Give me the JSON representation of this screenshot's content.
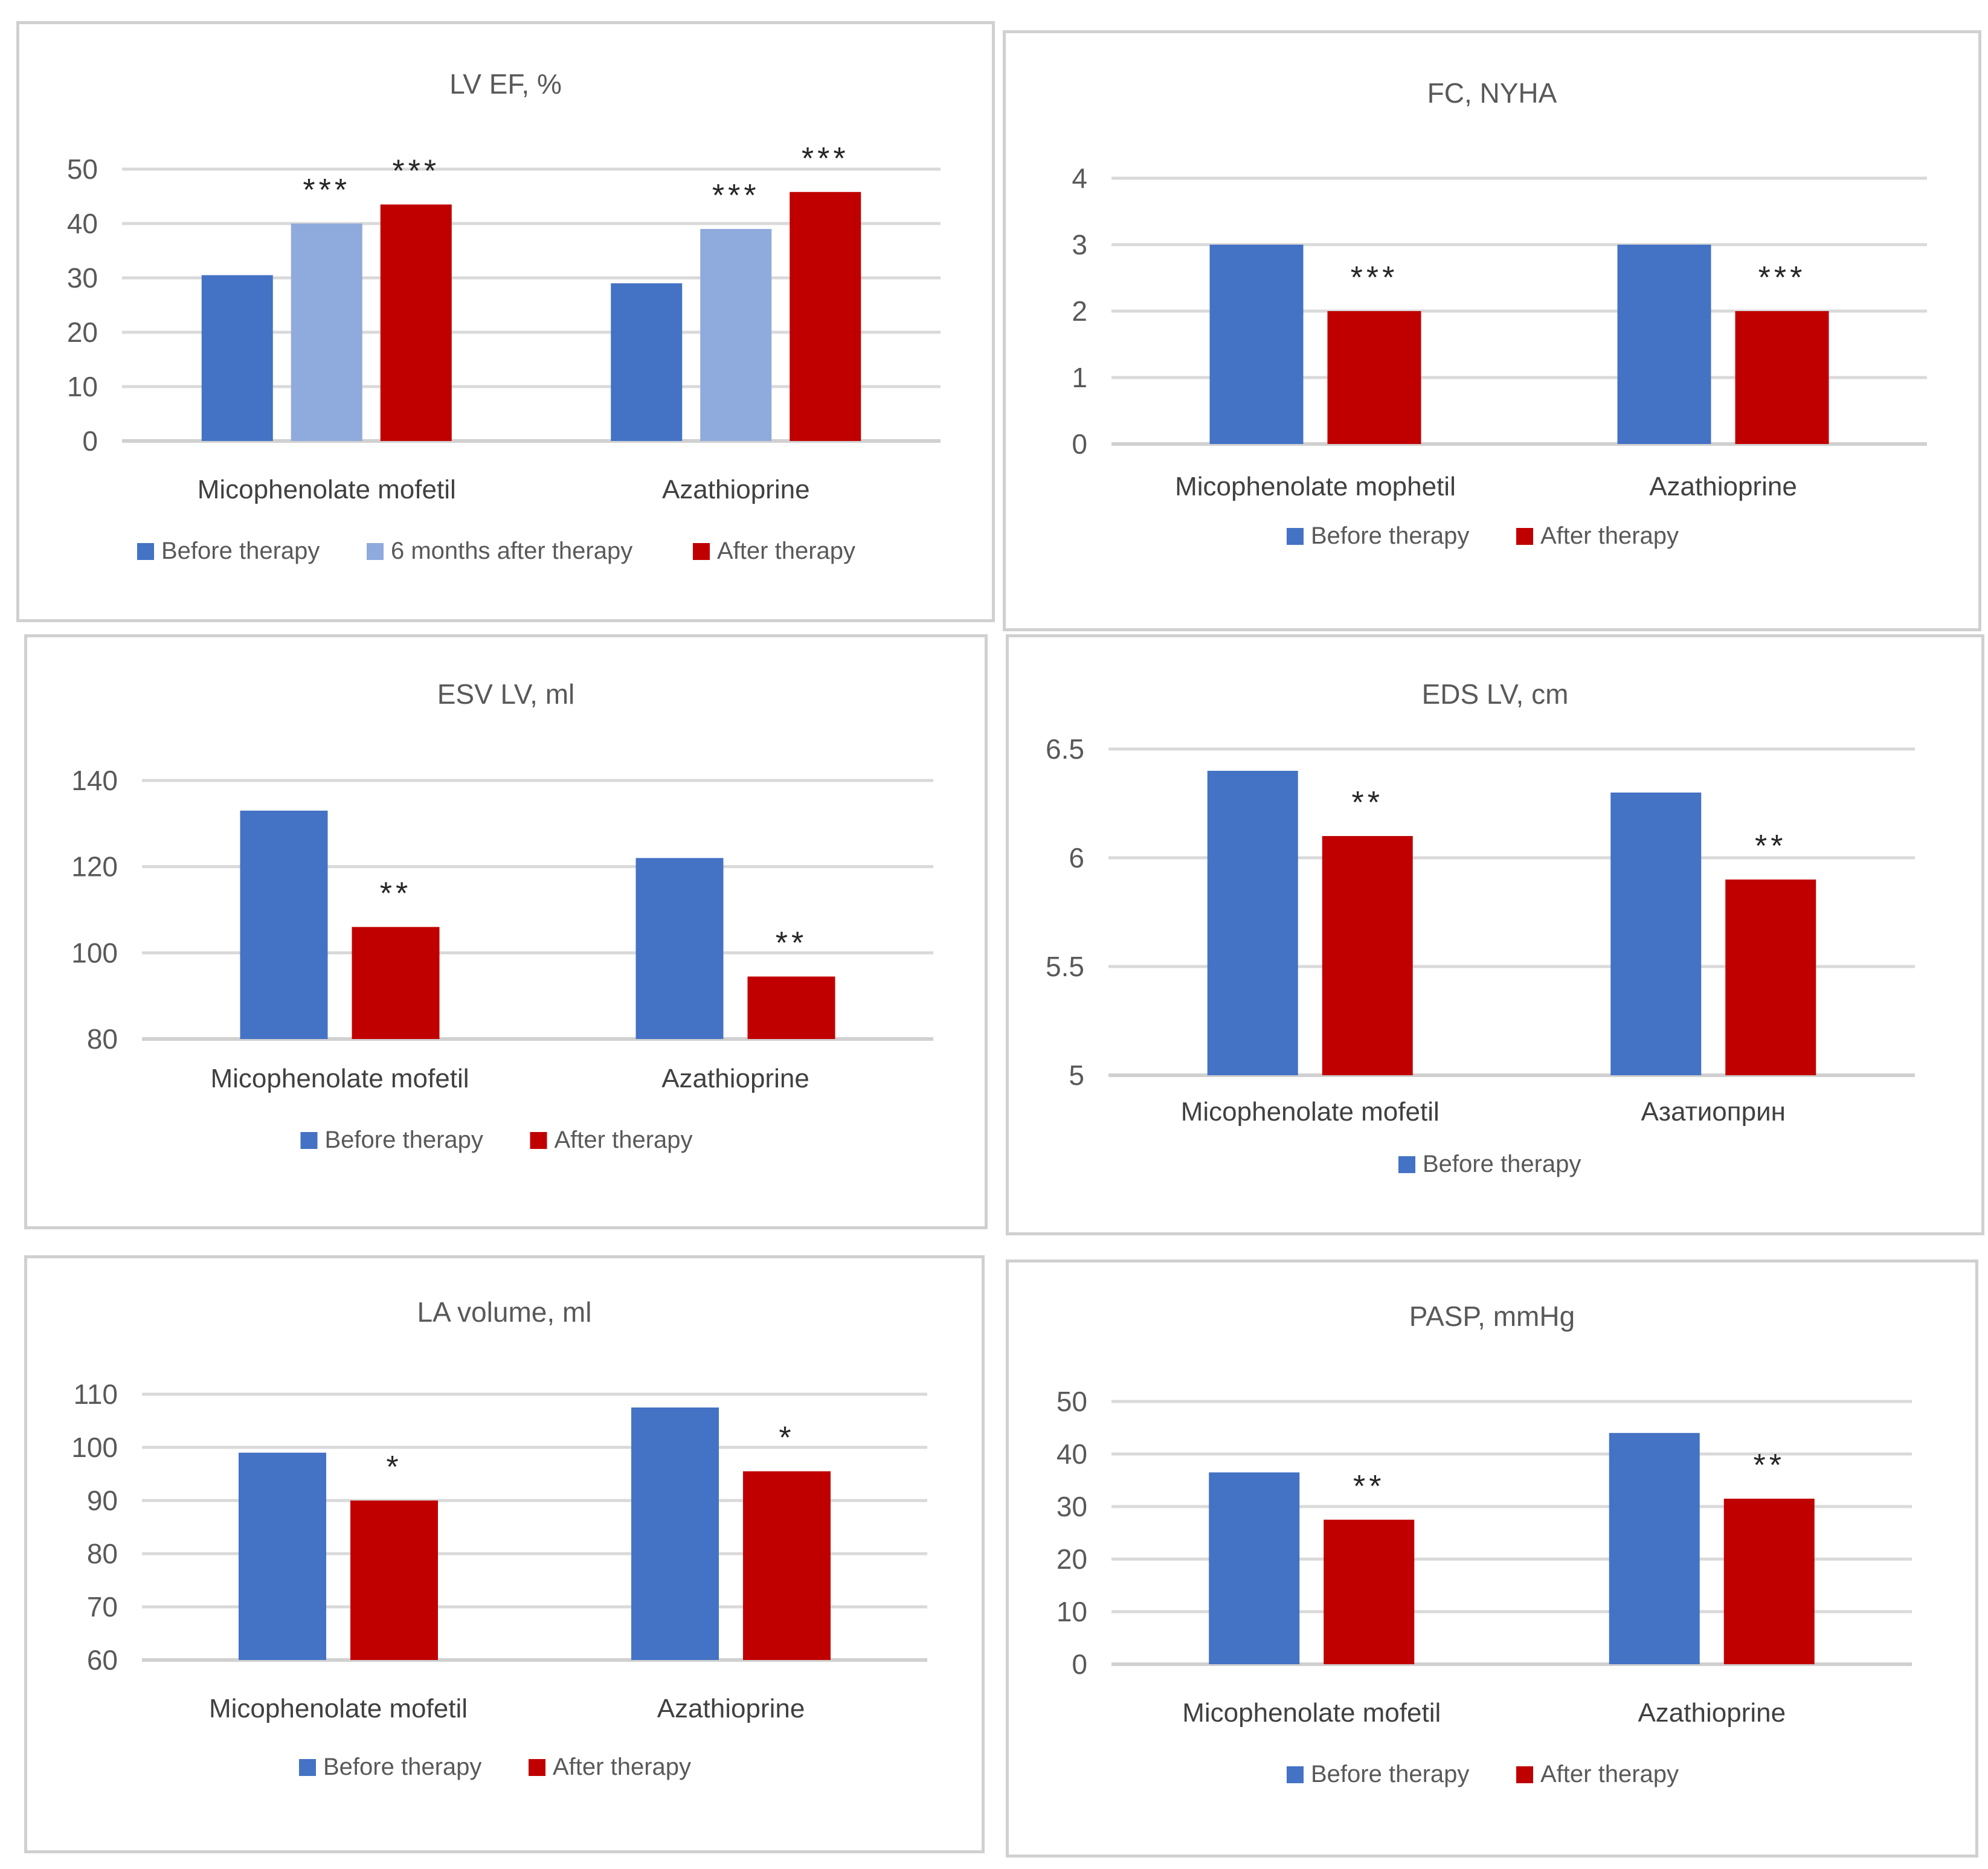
{
  "colors": {
    "before": "#4472c4",
    "six_months": "#8faadc",
    "after": "#c00000"
  },
  "chart_data": [
    {
      "type": "bar",
      "title": "LV EF, %",
      "categories": [
        "Micophenolate mofetil",
        "Azathioprine"
      ],
      "ylim": [
        0,
        50
      ],
      "yticks": [
        "0",
        "10",
        "20",
        "30",
        "40",
        "50"
      ],
      "series": [
        {
          "name": "Before therapy",
          "color": "before",
          "values": [
            30.5,
            29
          ],
          "sig": [
            "",
            ""
          ]
        },
        {
          "name": "6 months after therapy",
          "color": "six_months",
          "values": [
            40,
            39
          ],
          "sig": [
            "***",
            "***"
          ]
        },
        {
          "name": "After therapy",
          "color": "after",
          "values": [
            43.5,
            45.8
          ],
          "sig": [
            "***",
            "***"
          ]
        }
      ]
    },
    {
      "type": "bar",
      "title": "FC, NYHA",
      "categories": [
        "Micophenolate mophetil",
        "Azathioprine"
      ],
      "ylim": [
        0,
        4
      ],
      "yticks": [
        "0",
        "1",
        "2",
        "3",
        "4"
      ],
      "series": [
        {
          "name": "Before therapy",
          "color": "before",
          "values": [
            3,
            3
          ],
          "sig": [
            "",
            ""
          ]
        },
        {
          "name": "After therapy",
          "color": "after",
          "values": [
            2,
            2
          ],
          "sig": [
            "***",
            "***"
          ]
        }
      ]
    },
    {
      "type": "bar",
      "title": "ESV LV, ml",
      "categories": [
        "Micophenolate mofetil",
        "Azathioprine"
      ],
      "ylim": [
        80,
        140
      ],
      "yticks": [
        "80",
        "100",
        "120",
        "140"
      ],
      "series": [
        {
          "name": "Before therapy",
          "color": "before",
          "values": [
            133,
            122
          ],
          "sig": [
            "",
            ""
          ]
        },
        {
          "name": "After therapy",
          "color": "after",
          "values": [
            106,
            94.5
          ],
          "sig": [
            "**",
            "**"
          ]
        }
      ]
    },
    {
      "type": "bar",
      "title": "EDS LV, cm",
      "categories": [
        "Micophenolate mofetil",
        "Азатиоприн"
      ],
      "ylim": [
        5,
        6.5
      ],
      "yticks": [
        "5",
        "5.5",
        "6",
        "6.5"
      ],
      "series": [
        {
          "name": "Before therapy",
          "color": "before",
          "values": [
            6.4,
            6.3
          ],
          "sig": [
            "",
            ""
          ]
        },
        {
          "name": "",
          "color": "after",
          "values": [
            6.1,
            5.9
          ],
          "sig": [
            "**",
            "**"
          ]
        }
      ]
    },
    {
      "type": "bar",
      "title": "LA volume, ml",
      "categories": [
        "Micophenolate mofetil",
        "Azathioprine"
      ],
      "ylim": [
        60,
        110
      ],
      "yticks": [
        "60",
        "70",
        "80",
        "90",
        "100",
        "110"
      ],
      "series": [
        {
          "name": "Before therapy",
          "color": "before",
          "values": [
            99,
            107.5
          ],
          "sig": [
            "",
            ""
          ]
        },
        {
          "name": "After therapy",
          "color": "after",
          "values": [
            90,
            95.5
          ],
          "sig": [
            "*",
            "*"
          ]
        }
      ]
    },
    {
      "type": "bar",
      "title": "PASP, mmHg",
      "categories": [
        "Micophenolate mofetil",
        "Azathioprine"
      ],
      "ylim": [
        0,
        50
      ],
      "yticks": [
        "0",
        "10",
        "20",
        "30",
        "40",
        "50"
      ],
      "series": [
        {
          "name": "Before therapy",
          "color": "before",
          "values": [
            36.5,
            44
          ],
          "sig": [
            "",
            ""
          ]
        },
        {
          "name": "After therapy",
          "color": "after",
          "values": [
            27.5,
            31.5
          ],
          "sig": [
            "**",
            "**"
          ]
        }
      ]
    }
  ]
}
